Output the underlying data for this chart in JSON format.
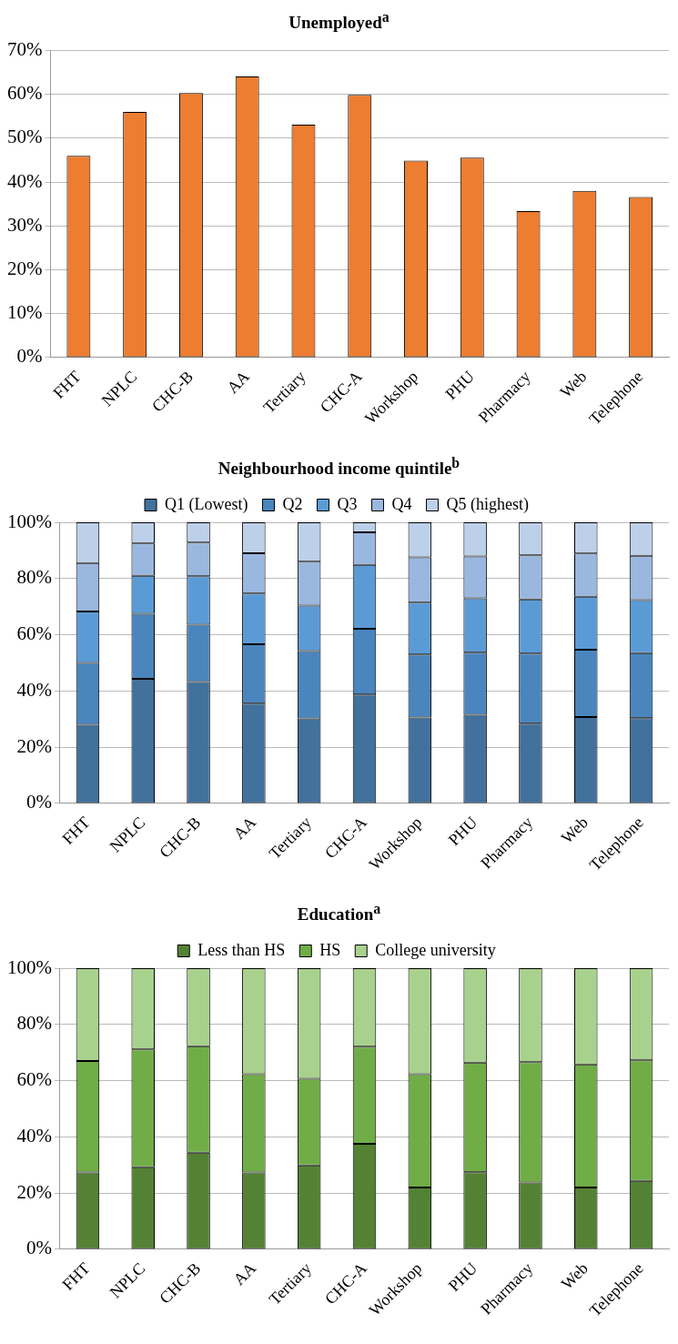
{
  "chart_data": [
    {
      "type": "bar",
      "title": "Unemployed$^{a}$",
      "categories": [
        "FHT",
        "NPLC",
        "CHC-B",
        "AA",
        "Tertiary",
        "CHC-A",
        "Workshop",
        "PHU",
        "Pharmacy",
        "Web",
        "Telephone"
      ],
      "values": [
        46,
        56,
        60.3,
        64.1,
        53.1,
        59.9,
        44.9,
        45.6,
        33.4,
        38,
        36.6
      ],
      "color": "#ed7d31",
      "ylim": [
        0,
        70
      ],
      "yticks": [
        {
          "value": 0,
          "label": "0%"
        },
        {
          "value": 10,
          "label": "10%"
        },
        {
          "value": 20,
          "label": "20%"
        },
        {
          "value": 30,
          "label": "30%"
        },
        {
          "value": 40,
          "label": "40%"
        },
        {
          "value": 50,
          "label": "50%"
        },
        {
          "value": 60,
          "label": "60%"
        },
        {
          "value": 70,
          "label": "70%"
        }
      ],
      "grid": "y",
      "legend": false
    },
    {
      "type": "bar",
      "title": "Neighbourhood income quintile$^{b}$",
      "categories": [
        "FHT",
        "NPLC",
        "CHC-B",
        "AA",
        "Tertiary",
        "CHC-A",
        "Workshop",
        "PHU",
        "Pharmacy",
        "Web",
        "Telephone"
      ],
      "stacked": true,
      "series": [
        {
          "name": "Q1 (Lowest)",
          "color": "#41719c",
          "values": [
            28,
            44.3,
            43.2,
            35.5,
            30.2,
            38.7,
            30.6,
            31.5,
            28.4,
            30.7,
            30.3
          ]
        },
        {
          "name": "Q2",
          "color": "#4a85bd",
          "values": [
            22,
            23.2,
            20.4,
            21.1,
            24,
            23.4,
            22.4,
            22.1,
            24.9,
            24,
            23.2
          ]
        },
        {
          "name": "Q3",
          "color": "#5b9bd5",
          "values": [
            18.3,
            13.5,
            17.2,
            18.1,
            16.2,
            22.8,
            18.4,
            19.4,
            19.3,
            18.8,
            18.8
          ]
        },
        {
          "name": "Q4",
          "color": "#9ab7df",
          "values": [
            17.2,
            11.5,
            12,
            14.3,
            15.6,
            11.5,
            16.1,
            14.9,
            15.7,
            15.4,
            15.8
          ]
        },
        {
          "name": "Q5 (highest)",
          "color": "#bdd0ea",
          "values": [
            14.5,
            7.5,
            7.2,
            11,
            14,
            3.6,
            12.5,
            12.1,
            11.7,
            11.1,
            11.9
          ]
        }
      ],
      "ylim": [
        0,
        100
      ],
      "yticks": [
        {
          "value": 0,
          "label": "0%"
        },
        {
          "value": 20,
          "label": "20%"
        },
        {
          "value": 40,
          "label": "40%"
        },
        {
          "value": 60,
          "label": "60%"
        },
        {
          "value": 80,
          "label": "80%"
        },
        {
          "value": 100,
          "label": "100%"
        }
      ],
      "grid": "y",
      "legend": "top"
    },
    {
      "type": "bar",
      "title": "Education$^{a}$",
      "categories": [
        "FHT",
        "NPLC",
        "CHC-B",
        "AA",
        "Tertiary",
        "CHC-A",
        "Workshop",
        "PHU",
        "Pharmacy",
        "Web",
        "Telephone"
      ],
      "stacked": true,
      "series": [
        {
          "name": "Less than HS",
          "color": "#548235",
          "values": [
            27.3,
            29.2,
            34.4,
            27.3,
            29.8,
            37.5,
            22,
            27.4,
            23.8,
            22,
            24.3
          ]
        },
        {
          "name": "HS",
          "color": "#70ad47",
          "values": [
            39.7,
            41.9,
            37.8,
            35,
            30.9,
            34.6,
            40.3,
            39,
            42.8,
            43.8,
            42.9
          ]
        },
        {
          "name": "College university",
          "color": "#a9d18e",
          "values": [
            33,
            28.9,
            27.8,
            37.7,
            39.3,
            27.9,
            37.7,
            33.6,
            33.4,
            34.2,
            32.8
          ]
        }
      ],
      "ylim": [
        0,
        100
      ],
      "yticks": [
        {
          "value": 0,
          "label": "0%"
        },
        {
          "value": 20,
          "label": "20%"
        },
        {
          "value": 40,
          "label": "40%"
        },
        {
          "value": 60,
          "label": "60%"
        },
        {
          "value": 80,
          "label": "80%"
        },
        {
          "value": 100,
          "label": "100%"
        }
      ],
      "grid": "y",
      "legend": "top"
    }
  ]
}
